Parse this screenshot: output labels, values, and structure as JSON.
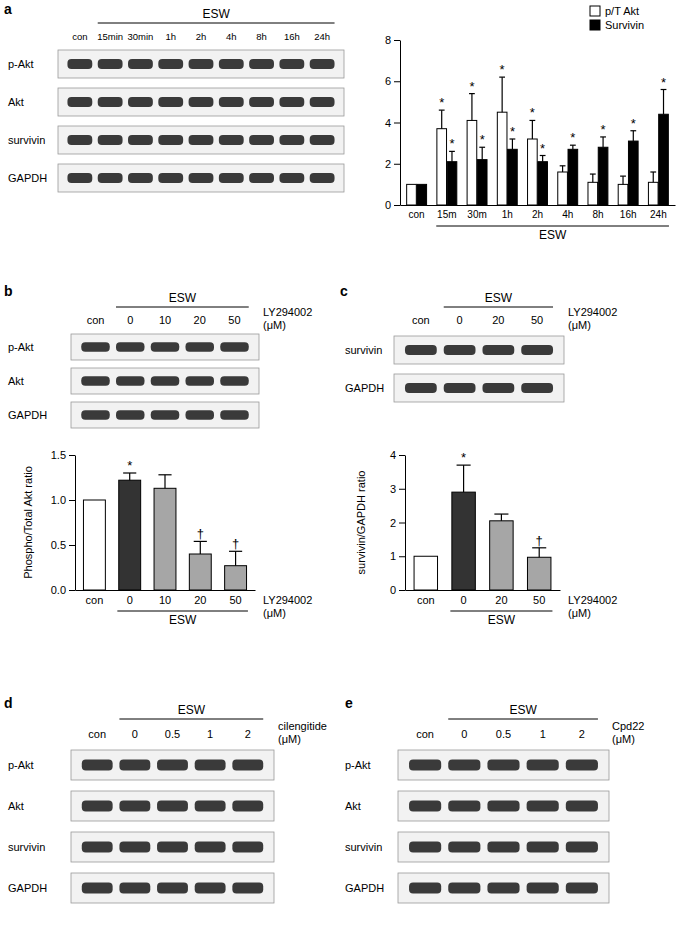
{
  "panel_labels": [
    "a",
    "b",
    "c",
    "d",
    "e"
  ],
  "blots": [
    {
      "header": "ESW",
      "lanes": [
        "con",
        "15min",
        "30min",
        "1h",
        "2h",
        "4h",
        "8h",
        "16h",
        "24h"
      ],
      "rows": [
        "p-Akt",
        "Akt",
        "survivin",
        "GAPDH"
      ]
    },
    {
      "header": "ESW",
      "lanes": [
        "con",
        "0",
        "10",
        "20",
        "50"
      ],
      "rows": [
        "p-Akt",
        "Akt",
        "GAPDH"
      ],
      "treatment": [
        "LY294002",
        "(μM)"
      ]
    },
    {
      "header": "ESW",
      "lanes": [
        "con",
        "0",
        "20",
        "50"
      ],
      "rows": [
        "survivin",
        "GAPDH"
      ],
      "treatment": [
        "LY294002",
        "(μM)"
      ]
    },
    {
      "header": "ESW",
      "lanes": [
        "con",
        "0",
        "0.5",
        "1",
        "2"
      ],
      "rows": [
        "p-Akt",
        "Akt",
        "survivin",
        "GAPDH"
      ],
      "treatment": [
        "cilengitide",
        "(μM)"
      ]
    },
    {
      "header": "ESW",
      "lanes": [
        "con",
        "0",
        "0.5",
        "1",
        "2"
      ],
      "rows": [
        "p-Akt",
        "Akt",
        "survivin",
        "GAPDH"
      ],
      "treatment": [
        "Cpd22",
        "(μM)"
      ]
    }
  ],
  "chart_data": [
    {
      "type": "bar",
      "categories": [
        "con",
        "15m",
        "30m",
        "1h",
        "2h",
        "4h",
        "8h",
        "16h",
        "24h"
      ],
      "series": [
        {
          "name": "p/T Akt",
          "color": "#ffffff",
          "values": [
            1.0,
            3.7,
            4.1,
            4.5,
            3.2,
            1.6,
            1.1,
            1.0,
            1.1
          ],
          "errors": [
            null,
            0.9,
            1.3,
            1.7,
            0.9,
            0.3,
            0.4,
            0.4,
            0.5
          ],
          "significance": [
            null,
            "*",
            "*",
            "*",
            "*",
            null,
            null,
            null,
            null
          ]
        },
        {
          "name": "Survivin",
          "color": "#000000",
          "values": [
            1.0,
            2.1,
            2.2,
            2.7,
            2.1,
            2.7,
            2.8,
            3.1,
            4.4
          ],
          "errors": [
            null,
            0.5,
            0.6,
            0.5,
            0.3,
            0.2,
            0.5,
            0.5,
            1.2
          ],
          "significance": [
            null,
            "*",
            "*",
            "*",
            "*",
            "*",
            "*",
            "*",
            "*"
          ]
        }
      ],
      "ylim": [
        0,
        8
      ],
      "yticks": [
        0,
        2,
        4,
        6,
        8
      ],
      "legend": "top-right",
      "x_group_label": "ESW"
    },
    {
      "type": "bar",
      "categories": [
        "con",
        "0",
        "10",
        "20",
        "50"
      ],
      "values": [
        1.0,
        1.22,
        1.13,
        0.4,
        0.27
      ],
      "errors": [
        null,
        0.08,
        0.15,
        0.14,
        0.16
      ],
      "significance": [
        null,
        "*",
        null,
        "†",
        "†"
      ],
      "colors": [
        "#ffffff",
        "#333333",
        "#a6a6a6",
        "#a6a6a6",
        "#a6a6a6"
      ],
      "ylabel": "Phospho/Total Akt ratio",
      "ylim": [
        0,
        1.5
      ],
      "yticks": [
        {
          "value": 0,
          "label": "0.0"
        },
        {
          "value": 0.5,
          "label": "0.5"
        },
        {
          "value": 1,
          "label": "1.0"
        },
        {
          "value": 1.5,
          "label": "1.5"
        }
      ],
      "x_group_label": "ESW",
      "x_note": [
        "LY294002",
        "(μM)"
      ]
    },
    {
      "type": "bar",
      "categories": [
        "con",
        "0",
        "20",
        "50"
      ],
      "values": [
        1.0,
        2.9,
        2.05,
        0.97
      ],
      "errors": [
        null,
        0.8,
        0.2,
        0.28
      ],
      "significance": [
        null,
        "*",
        null,
        "†"
      ],
      "colors": [
        "#ffffff",
        "#333333",
        "#a6a6a6",
        "#a6a6a6"
      ],
      "ylabel": "survivin/GAPDH ratio",
      "ylim": [
        0,
        4
      ],
      "yticks": [
        0,
        1,
        2,
        3,
        4
      ],
      "x_group_label": "ESW",
      "x_note": [
        "LY294002",
        "(μM)"
      ]
    }
  ]
}
